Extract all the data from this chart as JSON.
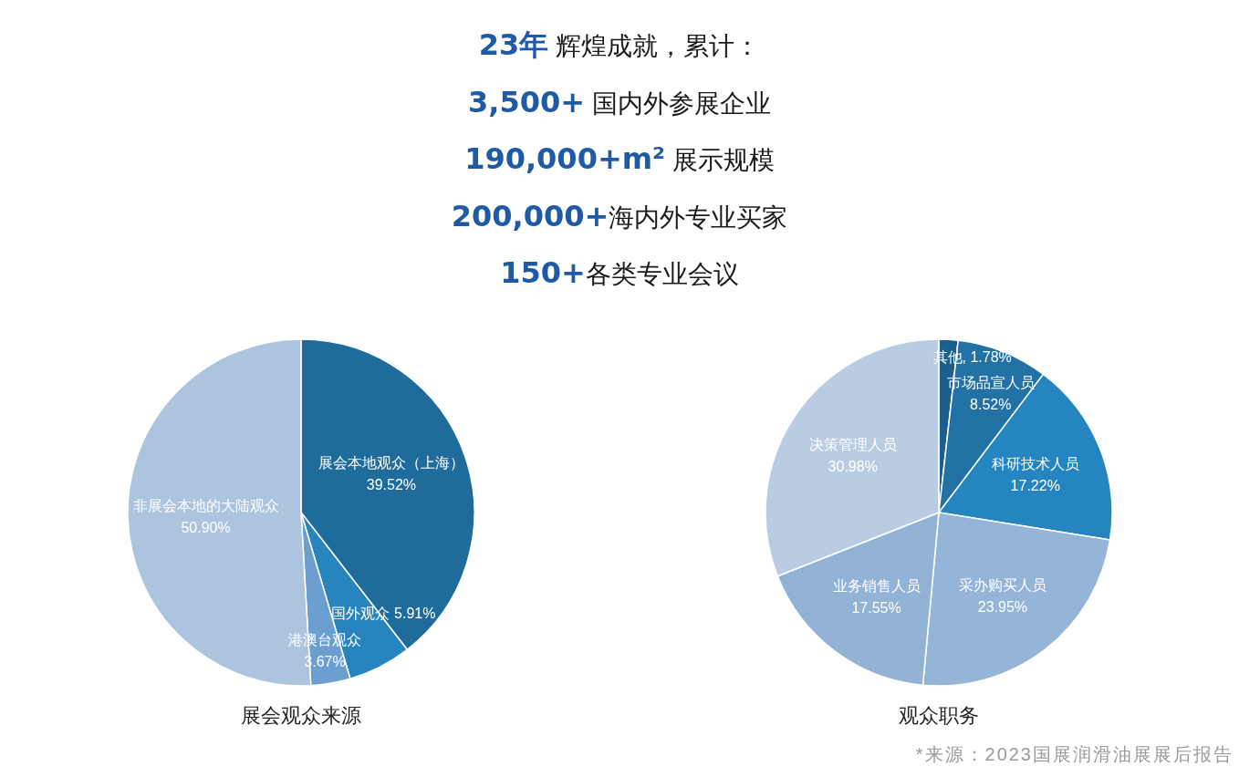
{
  "chart_data": [
    {
      "type": "other",
      "title": "**23年** 辉煌成就，累计：",
      "annotations": [
        "**3,500+** 国内外参展企业",
        "**190,000+m²** 展示规模",
        "**200,000+**海内外专业买家",
        "**150+**各类专业会议"
      ]
    },
    {
      "type": "pie",
      "title": "展会观众来源",
      "categories": [
        "展会本地观众（上海）",
        "国外观众",
        "港澳台观众",
        "非展会本地的大陆观众"
      ],
      "values": [
        39.52,
        5.91,
        3.67,
        50.9
      ],
      "value_labels": [
        "39.52%",
        "5.91%",
        "3.67%",
        "50.90%"
      ],
      "colors": [
        "#1f6b9b",
        "#2884be",
        "#6b9fcf",
        "#adc4df"
      ]
    },
    {
      "type": "pie",
      "title": "观众职务",
      "categories": [
        "其他",
        "市场品宣人员",
        "科研技术人员",
        "采办购买人员",
        "业务销售人员",
        "决策管理人员"
      ],
      "values": [
        1.78,
        8.52,
        17.22,
        23.95,
        17.55,
        30.98
      ],
      "value_labels": [
        ", 1.78%",
        "8.52%",
        "17.22%",
        "23.95%",
        "17.55%",
        "30.98%"
      ],
      "colors": [
        "#1b5f8c",
        "#2272a5",
        "#2585c0",
        "#94b4d8",
        "#93b3d6",
        "#b9cce2"
      ],
      "annotations": [
        "*来源：2023国展润滑油展展后报告"
      ]
    }
  ]
}
